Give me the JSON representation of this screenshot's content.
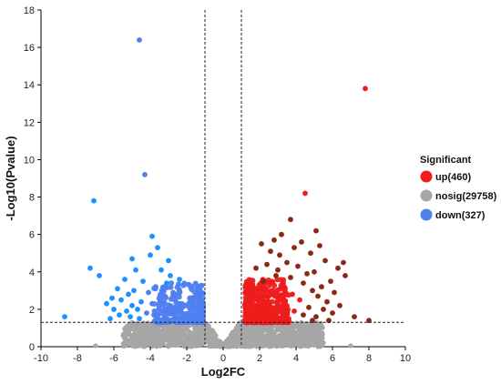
{
  "chart_data": {
    "type": "scatter",
    "xlabel": "Log2FC",
    "ylabel": "-Log10(Pvalue)",
    "xlim": [
      -10,
      10
    ],
    "ylim": [
      0,
      18
    ],
    "x_ticks": [
      -10,
      -8,
      -6,
      -4,
      -2,
      0,
      2,
      4,
      6,
      8,
      10
    ],
    "y_ticks": [
      0,
      2,
      4,
      6,
      8,
      10,
      12,
      14,
      16,
      18
    ],
    "thresholds": {
      "fc": [
        -1,
        1
      ],
      "pvalue": 1.3
    },
    "legend": {
      "title": "Significant",
      "placement": "right",
      "entries": [
        {
          "label": "up(460)",
          "color": "#ee1c1c"
        },
        {
          "label": "nosig(29758)",
          "color": "#a6a6a6"
        },
        {
          "label": "down(327)",
          "color": "#4f7ff0"
        }
      ]
    },
    "series": [
      {
        "name": "up(460)",
        "color": "#ee1c1c",
        "outlier_color": "#8b2a14",
        "points": [
          [
            7.8,
            13.8
          ],
          [
            4.5,
            8.2
          ],
          [
            3.7,
            6.8
          ],
          [
            5.1,
            6.2
          ],
          [
            3.2,
            6.0
          ],
          [
            2.8,
            5.7
          ],
          [
            4.3,
            5.6
          ],
          [
            5.3,
            5.4
          ],
          [
            2.1,
            5.5
          ],
          [
            3.9,
            5.3
          ],
          [
            2.6,
            5.1
          ],
          [
            4.8,
            5.0
          ],
          [
            3.1,
            4.9
          ],
          [
            5.6,
            4.6
          ],
          [
            3.5,
            4.5
          ],
          [
            2.4,
            4.4
          ],
          [
            4.1,
            4.3
          ],
          [
            6.6,
            4.5
          ],
          [
            6.3,
            4.2
          ],
          [
            1.8,
            4.2
          ],
          [
            5.0,
            4.0
          ],
          [
            3.0,
            4.1
          ],
          [
            4.6,
            3.9
          ],
          [
            2.9,
            3.8
          ],
          [
            6.7,
            3.8
          ],
          [
            3.7,
            3.7
          ],
          [
            5.9,
            3.5
          ],
          [
            4.4,
            3.4
          ],
          [
            2.2,
            3.5
          ],
          [
            5.4,
            3.2
          ],
          [
            3.3,
            3.3
          ],
          [
            4.9,
            3.0
          ],
          [
            6.1,
            2.9
          ],
          [
            3.8,
            2.8
          ],
          [
            5.2,
            2.7
          ],
          [
            2.6,
            2.9
          ],
          [
            4.2,
            2.5
          ],
          [
            5.7,
            2.4
          ],
          [
            3.4,
            2.4
          ],
          [
            6.4,
            2.2
          ],
          [
            4.7,
            2.1
          ],
          [
            5.5,
            2.0
          ],
          [
            3.9,
            1.9
          ],
          [
            6.0,
            1.8
          ],
          [
            4.4,
            1.7
          ],
          [
            5.1,
            1.6
          ],
          [
            8.0,
            1.4
          ],
          [
            7.2,
            1.6
          ],
          [
            3.6,
            1.5
          ],
          [
            4.9,
            1.4
          ],
          [
            5.8,
            1.4
          ],
          [
            2.5,
            2.3
          ],
          [
            2.0,
            2.6
          ],
          [
            1.6,
            3.0
          ],
          [
            2.3,
            3.1
          ]
        ]
      },
      {
        "name": "down(327)",
        "color": "#4f7ff0",
        "outlier_color": "#1e90ff",
        "points": [
          [
            -4.6,
            16.4
          ],
          [
            -4.3,
            9.2
          ],
          [
            -7.1,
            7.8
          ],
          [
            -3.9,
            5.9
          ],
          [
            -3.6,
            5.3
          ],
          [
            -4.0,
            4.9
          ],
          [
            -3.0,
            4.6
          ],
          [
            -7.3,
            4.2
          ],
          [
            -6.8,
            3.8
          ],
          [
            -5.0,
            4.7
          ],
          [
            -4.8,
            4.1
          ],
          [
            -3.4,
            4.1
          ],
          [
            -2.9,
            3.8
          ],
          [
            -5.4,
            3.6
          ],
          [
            -4.4,
            3.5
          ],
          [
            -3.1,
            3.4
          ],
          [
            -5.8,
            3.1
          ],
          [
            -4.9,
            3.0
          ],
          [
            -3.7,
            3.2
          ],
          [
            -5.2,
            2.8
          ],
          [
            -6.1,
            2.6
          ],
          [
            -4.1,
            2.9
          ],
          [
            -3.3,
            2.7
          ],
          [
            -5.6,
            2.5
          ],
          [
            -4.5,
            2.4
          ],
          [
            -6.4,
            2.3
          ],
          [
            -3.9,
            2.3
          ],
          [
            -5.0,
            2.2
          ],
          [
            -3.5,
            2.2
          ],
          [
            -6.0,
            2.0
          ],
          [
            -4.7,
            2.0
          ],
          [
            -5.3,
            1.9
          ],
          [
            -4.2,
            1.8
          ],
          [
            -5.7,
            1.7
          ],
          [
            -3.8,
            1.7
          ],
          [
            -5.1,
            1.6
          ],
          [
            -6.2,
            1.5
          ],
          [
            -4.6,
            1.5
          ],
          [
            -8.7,
            1.6
          ],
          [
            -3.2,
            2.0
          ],
          [
            -2.6,
            2.8
          ],
          [
            -2.4,
            3.6
          ]
        ]
      }
    ],
    "clouds": [
      {
        "series": "up(460)",
        "x": [
          1.2,
          3.6
        ],
        "y": [
          1.3,
          3.6
        ],
        "count": 420
      },
      {
        "series": "down(327)",
        "x": [
          -3.8,
          -1.1
        ],
        "y": [
          1.3,
          3.4
        ],
        "count": 300
      }
    ],
    "nosig_background": {
      "series": "nosig(29758)",
      "x": [
        -5.5,
        5.5
      ],
      "y": [
        0,
        1.3
      ],
      "count": 1400
    }
  }
}
